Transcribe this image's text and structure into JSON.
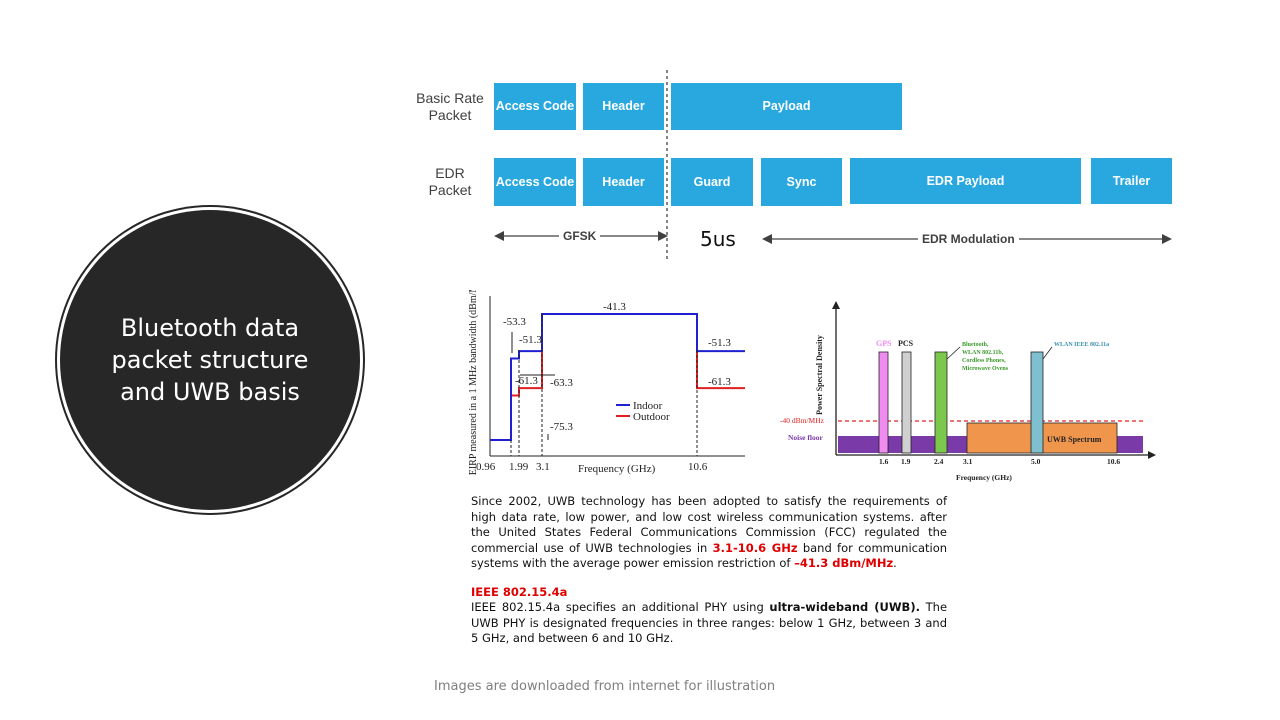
{
  "title": "Bluetooth data packet structure and UWB basis",
  "packet": {
    "basic_label": [
      "Basic Rate",
      "Packet"
    ],
    "edr_label": [
      "EDR",
      "Packet"
    ],
    "basic_blocks": [
      "Access Code",
      "Header",
      "Payload"
    ],
    "edr_blocks": [
      "Access Code",
      "Header",
      "Guard",
      "Sync",
      "EDR Payload",
      "Trailer"
    ],
    "gfsk": "GFSK",
    "guard_time": "5us",
    "edr_mod": "EDR Modulation",
    "color": "#29a8e0"
  },
  "chart_data": [
    {
      "type": "line",
      "ylabel": "EIRP measured in a 1 MHz bandwidth (dBm/MHz)",
      "xlabel": "Frequency (GHz)",
      "x_ticks": [
        "0.96",
        "1.99",
        "3.1",
        "10.6"
      ],
      "series": [
        {
          "name": "Indoor",
          "color": "#2020d0",
          "points": [
            [
              0.96,
              -75.3
            ],
            [
              1.61,
              -75.3
            ],
            [
              1.61,
              -53.3
            ],
            [
              1.99,
              -53.3
            ],
            [
              1.99,
              -51.3
            ],
            [
              3.1,
              -51.3
            ],
            [
              3.1,
              -41.3
            ],
            [
              10.6,
              -41.3
            ],
            [
              10.6,
              -51.3
            ],
            [
              14,
              -51.3
            ]
          ]
        },
        {
          "name": "Outdoor",
          "color": "#e02020",
          "points": [
            [
              0.96,
              -75.3
            ],
            [
              1.61,
              -75.3
            ],
            [
              1.61,
              -63.3
            ],
            [
              1.99,
              -63.3
            ],
            [
              1.99,
              -61.3
            ],
            [
              3.1,
              -61.3
            ],
            [
              3.1,
              -41.3
            ],
            [
              10.6,
              -41.3
            ],
            [
              10.6,
              -61.3
            ],
            [
              14,
              -61.3
            ]
          ]
        }
      ],
      "annotations": [
        "-41.3",
        "-53.3",
        "-51.3",
        "-61.3",
        "-63.3",
        "-75.3",
        "-51.3",
        "-61.3"
      ]
    },
    {
      "type": "bar",
      "ylabel": "Power Spectral Density",
      "xlabel": "Frequency (GHz)",
      "x_ticks": [
        "1.6",
        "1.9",
        "2.4",
        "3.1",
        "5.0",
        "10.6"
      ],
      "labels": {
        "gps": "GPS",
        "pcs": "PCS",
        "bluetooth": [
          "Bluetooth,",
          "WLAN 802.11b,",
          "Cordless Phones,",
          "Microwave Ovens"
        ],
        "wlan": "WLAN IEEE 802.11a",
        "limit": "-40 dBm/MHz",
        "noise": "Noise floor",
        "uwb": "UWB Spectrum"
      },
      "colors": {
        "gps": "#f08cf0",
        "pcs": "#d0d0d0",
        "bluetooth": "#7cc84c",
        "wlan": "#7fc0d0",
        "uwb": "#f0964c",
        "noise": "#7a3aa8",
        "limit": "#e02020"
      }
    }
  ],
  "text": {
    "p1_a": "Since 2002, UWB technology has been adopted to satisfy the requirements of high data rate, low power, and low cost wireless communication systems. after the United States Federal Communications Commission (FCC) regulated the commercial use of UWB technologies in",
    "p1_red1": "3.1-10.6 GHz",
    "p1_b": "band for communication systems with the average power emission restriction of",
    "p1_red2": "–41.3 dBm/MHz",
    "p1_end": ".",
    "h2": "IEEE 802.15.4a",
    "p2_a": "IEEE 802.15.4a specifies an additional PHY using",
    "p2_bold": "ultra-wideband (UWB).",
    "p2_b": "The UWB PHY is designated frequencies in three ranges: below 1 GHz, between 3 and 5 GHz, and between 6 and 10 GHz."
  },
  "footer": "Images are downloaded  from internet for illustration"
}
